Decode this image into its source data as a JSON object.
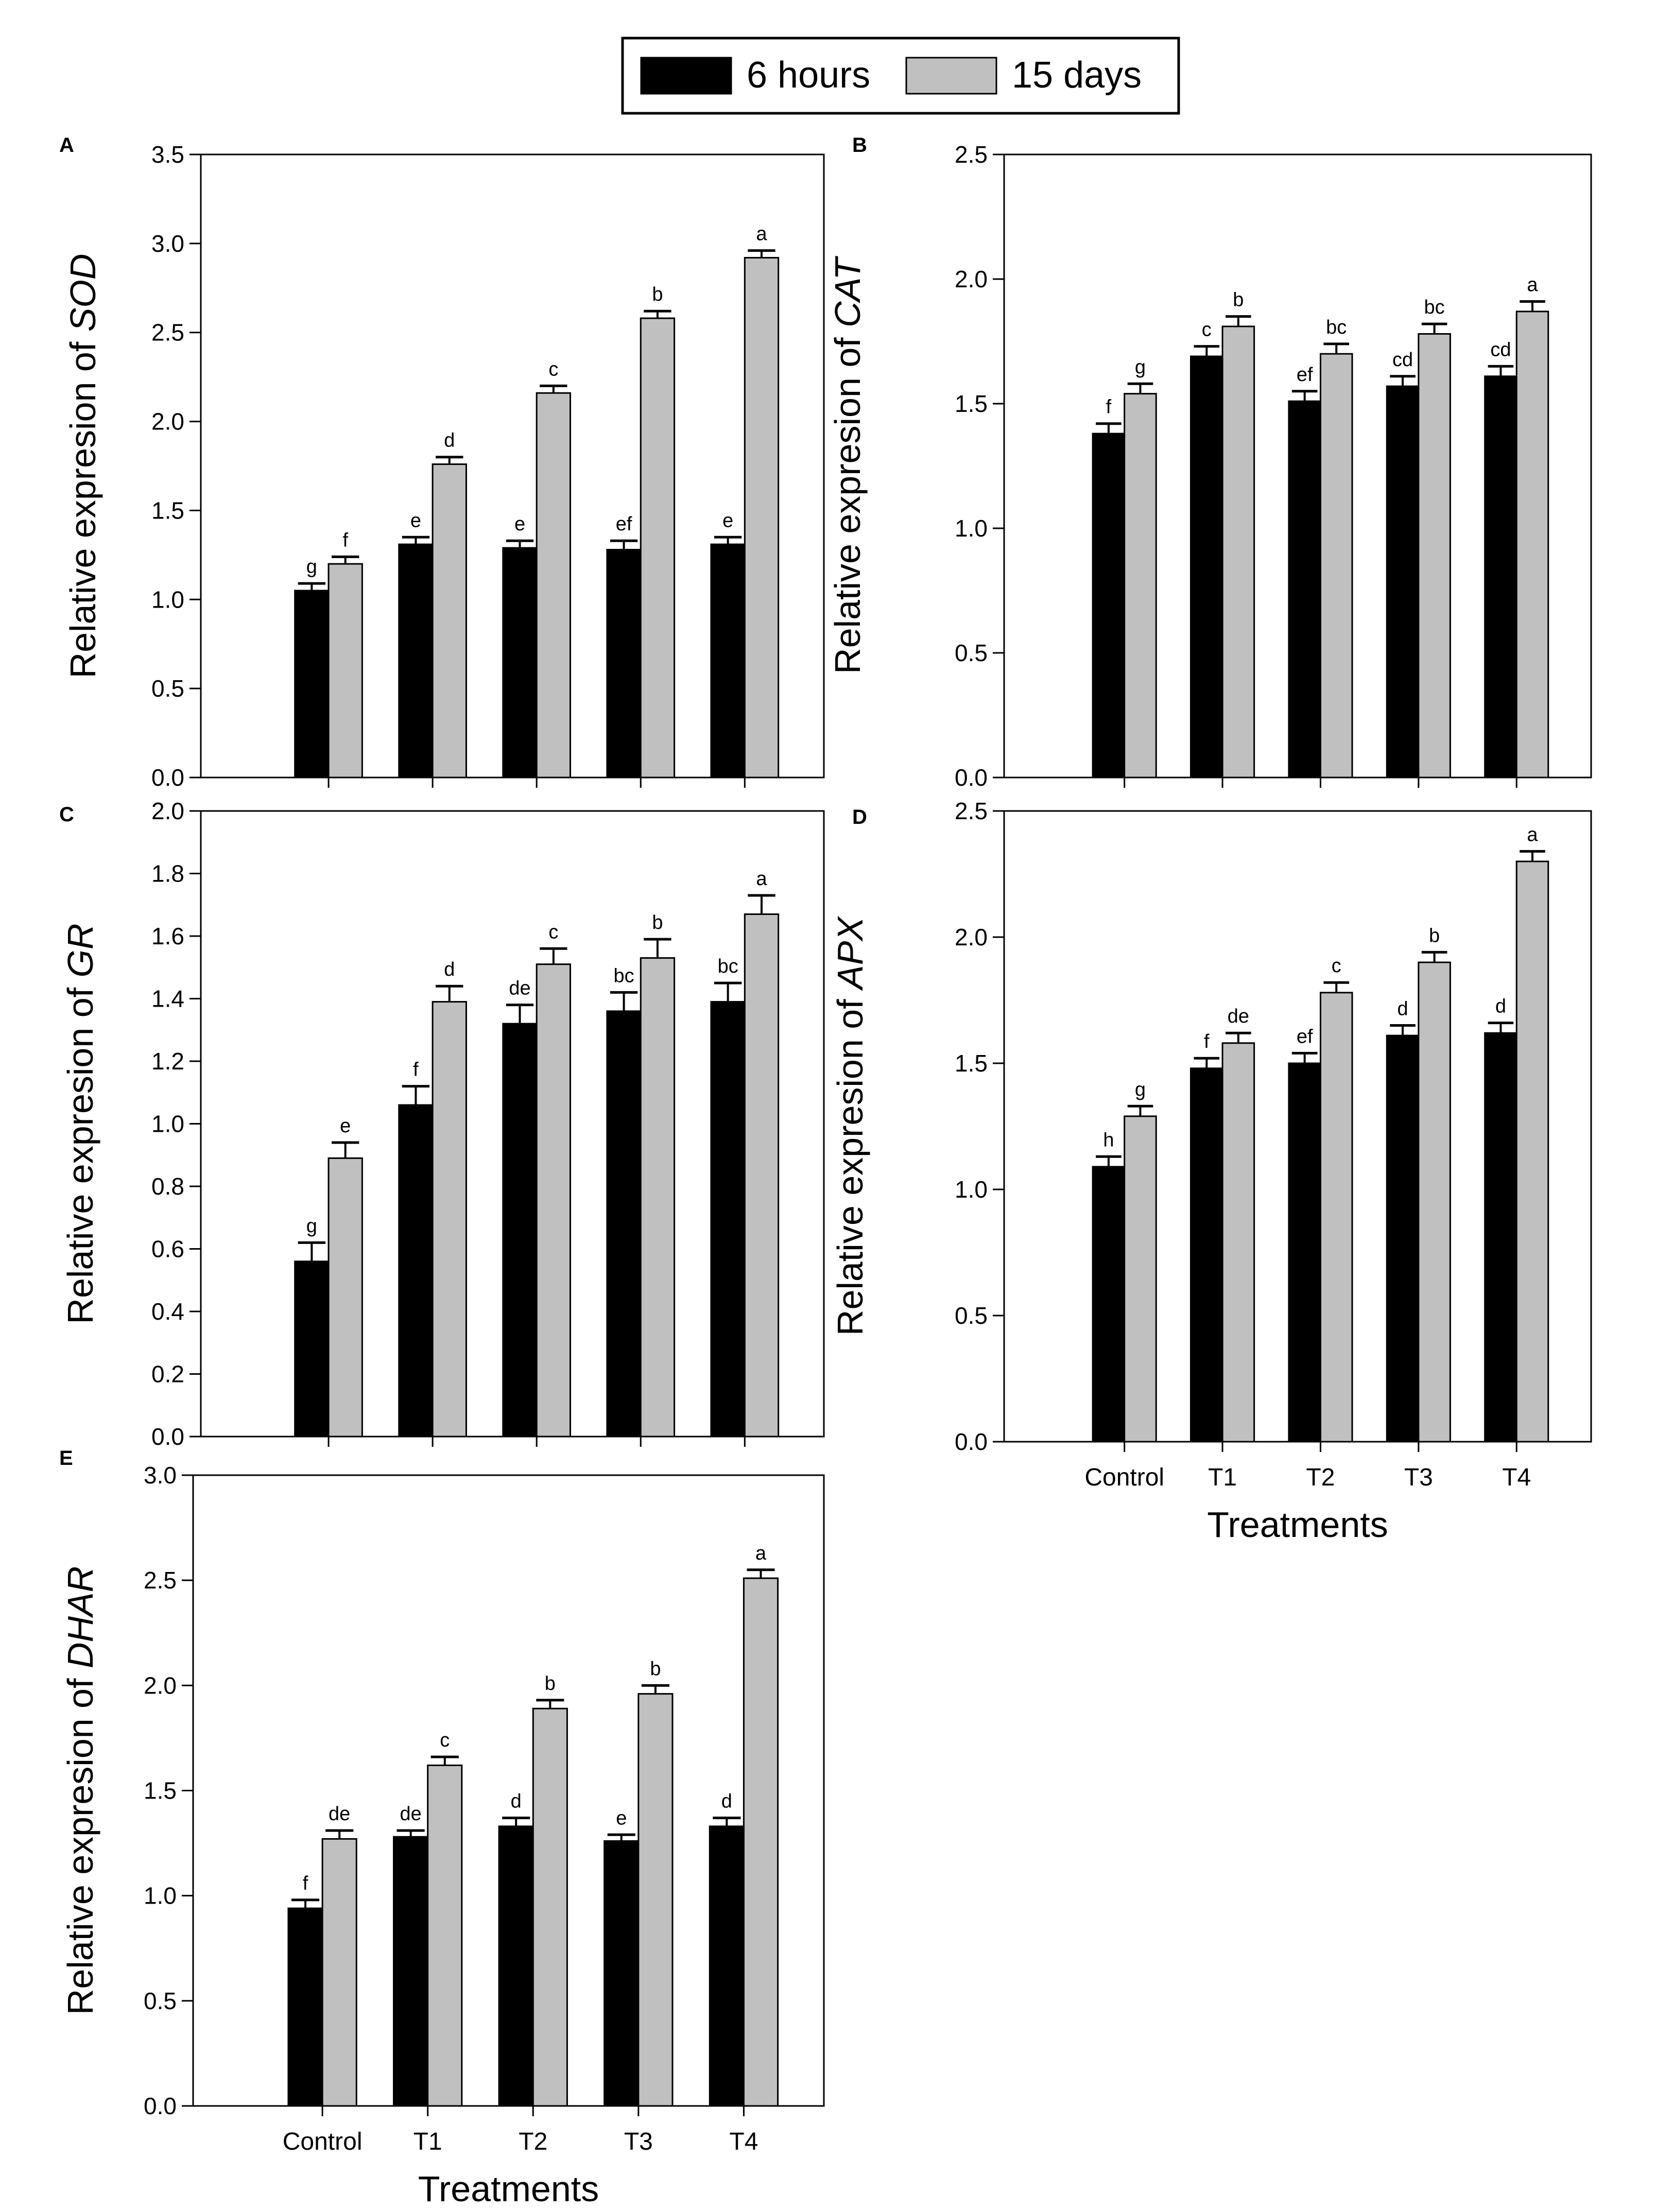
{
  "legend": {
    "items": [
      {
        "label": "6 hours",
        "color": "#000000"
      },
      {
        "label": "15 days",
        "color": "#c0c0c0"
      }
    ]
  },
  "chart_data": [
    {
      "type": "bar",
      "panel_letter": "A",
      "gene": "SOD",
      "ylabel_prefix": "Relative expresion of ",
      "categories": [
        "Control",
        "T1",
        "T2",
        "T3",
        "T4"
      ],
      "ylim": [
        0,
        3.5
      ],
      "yticks": [
        "0.0",
        "0.5",
        "1.0",
        "1.5",
        "2.0",
        "2.5",
        "3.0",
        "3.5"
      ],
      "show_category_labels": false,
      "xlabel": "",
      "series": [
        {
          "name": "6 hours",
          "values": [
            1.05,
            1.31,
            1.29,
            1.28,
            1.31
          ],
          "errors": [
            0.04,
            0.04,
            0.04,
            0.05,
            0.04
          ],
          "letters": [
            "g",
            "e",
            "e",
            "ef",
            "e"
          ]
        },
        {
          "name": "15 days",
          "values": [
            1.2,
            1.76,
            2.16,
            2.58,
            2.92
          ],
          "errors": [
            0.04,
            0.04,
            0.04,
            0.04,
            0.04
          ],
          "letters": [
            "f",
            "d",
            "c",
            "b",
            "a"
          ]
        }
      ]
    },
    {
      "type": "bar",
      "panel_letter": "B",
      "gene": "CAT",
      "ylabel_prefix": "Relative expresion of ",
      "categories": [
        "Control",
        "T1",
        "T2",
        "T3",
        "T4"
      ],
      "ylim": [
        0,
        2.5
      ],
      "yticks": [
        "0.0",
        "0.5",
        "1.0",
        "1.5",
        "2.0",
        "2.5"
      ],
      "show_category_labels": false,
      "xlabel": "",
      "series": [
        {
          "name": "6 hours",
          "values": [
            1.38,
            1.69,
            1.51,
            1.57,
            1.61
          ],
          "errors": [
            0.04,
            0.04,
            0.04,
            0.04,
            0.04
          ],
          "letters": [
            "f",
            "c",
            "ef",
            "cd",
            "cd"
          ]
        },
        {
          "name": "15 days",
          "values": [
            1.54,
            1.81,
            1.7,
            1.78,
            1.87
          ],
          "errors": [
            0.04,
            0.04,
            0.04,
            0.04,
            0.04
          ],
          "letters": [
            "g",
            "b",
            "bc",
            "bc",
            "a"
          ]
        }
      ]
    },
    {
      "type": "bar",
      "panel_letter": "C",
      "gene": "GR",
      "ylabel_prefix": "Relative expresion of ",
      "categories": [
        "Control",
        "T1",
        "T2",
        "T3",
        "T4"
      ],
      "ylim": [
        0,
        2.0
      ],
      "yticks": [
        "0.0",
        "0.2",
        "0.4",
        "0.6",
        "0.8",
        "1.0",
        "1.2",
        "1.4",
        "1.6",
        "1.8",
        "2.0"
      ],
      "show_category_labels": false,
      "xlabel": "",
      "series": [
        {
          "name": "6 hours",
          "values": [
            0.56,
            1.06,
            1.32,
            1.36,
            1.39
          ],
          "errors": [
            0.06,
            0.06,
            0.06,
            0.06,
            0.06
          ],
          "letters": [
            "g",
            "f",
            "de",
            "bc",
            "bc"
          ]
        },
        {
          "name": "15 days",
          "values": [
            0.89,
            1.39,
            1.51,
            1.53,
            1.67
          ],
          "errors": [
            0.05,
            0.05,
            0.05,
            0.06,
            0.06
          ],
          "letters": [
            "e",
            "d",
            "c",
            "b",
            "a"
          ]
        }
      ]
    },
    {
      "type": "bar",
      "panel_letter": "D",
      "gene": "APX",
      "ylabel_prefix": "Relative expresion of ",
      "categories": [
        "Control",
        "T1",
        "T2",
        "T3",
        "T4"
      ],
      "ylim": [
        0,
        2.5
      ],
      "yticks": [
        "0.0",
        "0.5",
        "1.0",
        "1.5",
        "2.0",
        "2.5"
      ],
      "show_category_labels": true,
      "xlabel": "Treatments",
      "series": [
        {
          "name": "6 hours",
          "values": [
            1.09,
            1.48,
            1.5,
            1.61,
            1.62
          ],
          "errors": [
            0.04,
            0.04,
            0.04,
            0.04,
            0.04
          ],
          "letters": [
            "h",
            "f",
            "ef",
            "d",
            "d"
          ]
        },
        {
          "name": "15 days",
          "values": [
            1.29,
            1.58,
            1.78,
            1.9,
            2.3
          ],
          "errors": [
            0.04,
            0.04,
            0.04,
            0.04,
            0.04
          ],
          "letters": [
            "g",
            "de",
            "c",
            "b",
            "a"
          ]
        }
      ]
    },
    {
      "type": "bar",
      "panel_letter": "E",
      "gene": "DHAR",
      "ylabel_prefix": "Relative expresion of ",
      "categories": [
        "Control",
        "T1",
        "T2",
        "T3",
        "T4"
      ],
      "ylim": [
        0,
        3.0
      ],
      "yticks": [
        "0.0",
        "0.5",
        "1.0",
        "1.5",
        "2.0",
        "2.5",
        "3.0"
      ],
      "show_category_labels": true,
      "xlabel": "Treatments",
      "series": [
        {
          "name": "6 hours",
          "values": [
            0.94,
            1.28,
            1.33,
            1.26,
            1.33
          ],
          "errors": [
            0.04,
            0.03,
            0.04,
            0.03,
            0.04
          ],
          "letters": [
            "f",
            "de",
            "d",
            "e",
            "d"
          ]
        },
        {
          "name": "15 days",
          "values": [
            1.27,
            1.62,
            1.89,
            1.96,
            2.51
          ],
          "errors": [
            0.04,
            0.04,
            0.04,
            0.04,
            0.04
          ],
          "letters": [
            "de",
            "c",
            "b",
            "b",
            "a"
          ]
        }
      ]
    }
  ]
}
